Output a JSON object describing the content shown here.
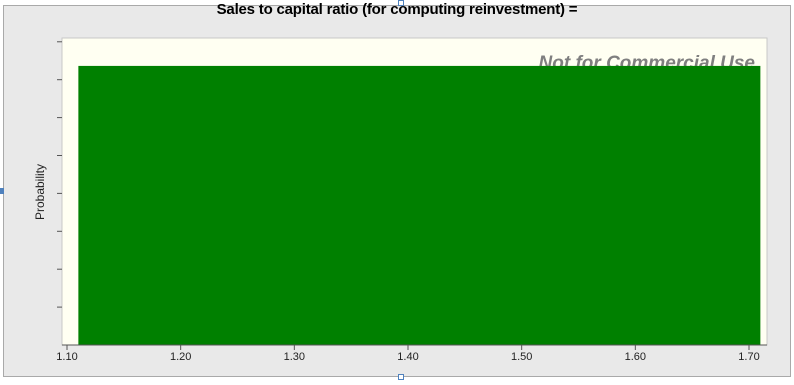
{
  "chart_data": {
    "type": "bar",
    "title": "Sales to capital ratio  (for computing reinvestment) =",
    "watermark": "Not for Commercial Use",
    "xlabel": "",
    "ylabel": "Probability",
    "xlim": [
      1.1,
      1.7
    ],
    "x_ticks": [
      "1.10",
      "1.20",
      "1.30",
      "1.40",
      "1.50",
      "1.60",
      "1.70"
    ],
    "bars": [
      {
        "x_start": 1.11,
        "x_end": 1.71,
        "value": 1.0
      }
    ],
    "ylim": [
      0,
      1.1
    ],
    "y_tick_count": 8,
    "grid": false,
    "colors": {
      "bar": "#008000",
      "plot_background": "#fffff2",
      "frame": "#e9e9e9",
      "watermark": "#7f7f7f"
    }
  }
}
